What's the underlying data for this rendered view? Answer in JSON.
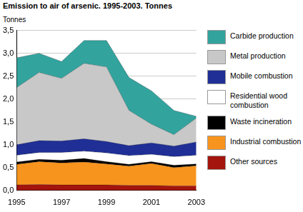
{
  "chart_data": {
    "type": "stacked_area",
    "title": "Emission to air of arsenic. 1995-2003. Tonnes",
    "y_label": "Tonnes",
    "categories": [
      "1995",
      null,
      "1997",
      null,
      "1999",
      null,
      "2001",
      null,
      "2003"
    ],
    "series": [
      {
        "name": "Other sources",
        "color": "#a3150d",
        "values": [
          0.12,
          0.13,
          0.12,
          0.12,
          0.12,
          0.11,
          0.11,
          0.1,
          0.1
        ]
      },
      {
        "name": "Industrial combustion",
        "color": "#f7941d",
        "values": [
          0.45,
          0.5,
          0.48,
          0.5,
          0.46,
          0.42,
          0.48,
          0.4,
          0.44
        ]
      },
      {
        "name": "Waste incineration",
        "color": "#000000",
        "values": [
          0.05,
          0.05,
          0.06,
          0.08,
          0.05,
          0.04,
          0.04,
          0.05,
          0.04
        ]
      },
      {
        "name": "Residential wood combustion",
        "color": "#ffffff",
        "values": [
          0.15,
          0.15,
          0.17,
          0.16,
          0.19,
          0.19,
          0.16,
          0.19,
          0.19
        ]
      },
      {
        "name": "Mobile combustion",
        "color": "#1f2f96",
        "values": [
          0.23,
          0.26,
          0.25,
          0.27,
          0.25,
          0.22,
          0.25,
          0.23,
          0.29
        ]
      },
      {
        "name": "Metal production",
        "color": "#c8c8c8",
        "values": [
          1.25,
          1.49,
          1.37,
          1.65,
          1.63,
          0.77,
          0.41,
          0.25,
          0.52
        ]
      },
      {
        "name": "Carbide production",
        "color": "#33a39e",
        "values": [
          0.65,
          0.42,
          0.37,
          0.5,
          0.58,
          0.72,
          0.73,
          0.53,
          0.04
        ]
      }
    ],
    "stacked": true,
    "ylim": [
      0,
      3.5
    ],
    "yticks": [
      {
        "value": 0,
        "label": "0,0"
      },
      {
        "value": 0.5,
        "label": "0,5"
      },
      {
        "value": 1,
        "label": "1,0"
      },
      {
        "value": 1.5,
        "label": "1,5"
      },
      {
        "value": 2,
        "label": "2,0"
      },
      {
        "value": 2.5,
        "label": "2,5"
      },
      {
        "value": 3,
        "label": "3,0"
      },
      {
        "value": 3.5,
        "label": "3,5"
      }
    ],
    "grid": true,
    "legend": "right"
  }
}
